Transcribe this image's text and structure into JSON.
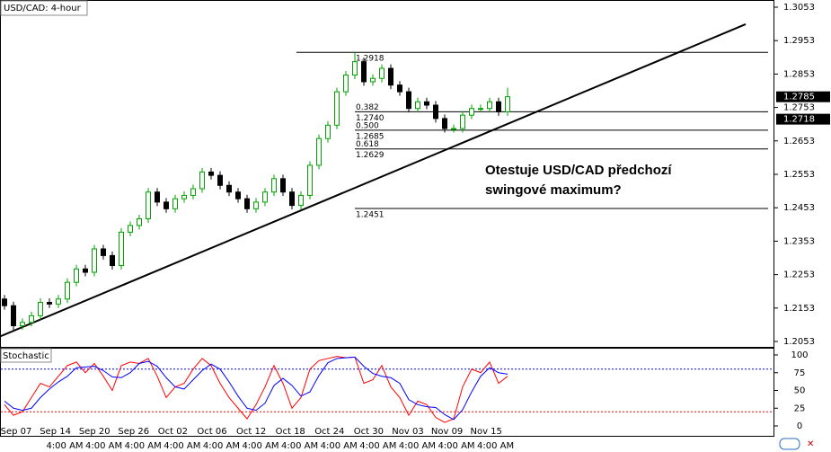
{
  "chart_data": {
    "type": "candlestick",
    "title": "USD/CAD: 4-hour",
    "annotation": [
      "Otestuje USD/CAD předchozí",
      "swingové maximum?"
    ],
    "candles": {
      "open": [
        1.218,
        1.216,
        1.21,
        1.211,
        1.213,
        1.217,
        1.2165,
        1.218,
        1.223,
        1.227,
        1.226,
        1.233,
        1.231,
        1.228,
        1.238,
        1.24,
        1.242,
        1.25,
        1.247,
        1.245,
        1.248,
        1.249,
        1.251,
        1.256,
        1.255,
        1.252,
        1.25,
        1.248,
        1.245,
        1.247,
        1.25,
        1.254,
        1.25,
        1.246,
        1.249,
        1.258,
        1.266,
        1.27,
        1.28,
        1.285,
        1.289,
        1.283,
        1.284,
        1.287,
        1.282,
        1.28,
        1.275,
        1.277,
        1.276,
        1.272,
        1.269,
        1.269,
        1.273,
        1.275,
        1.275,
        1.277,
        1.274
      ],
      "high": [
        1.2192,
        1.2172,
        1.2122,
        1.2142,
        1.2182,
        1.2182,
        1.2192,
        1.2242,
        1.2282,
        1.2282,
        1.2342,
        1.2342,
        1.2322,
        1.2392,
        1.2412,
        1.2432,
        1.2512,
        1.2512,
        1.2482,
        1.2492,
        1.2502,
        1.2522,
        1.2572,
        1.2572,
        1.2562,
        1.2532,
        1.2512,
        1.2492,
        1.2482,
        1.2512,
        1.2552,
        1.2552,
        1.2512,
        1.2502,
        1.2592,
        1.2672,
        1.2712,
        1.2812,
        1.2862,
        1.2918,
        1.2902,
        1.2852,
        1.2882,
        1.2882,
        1.2832,
        1.2812,
        1.2782,
        1.2782,
        1.2772,
        1.2732,
        1.2702,
        1.2742,
        1.2762,
        1.2762,
        1.2782,
        1.2782,
        1.2812
      ],
      "low": [
        1.2148,
        1.2088,
        1.2088,
        1.2098,
        1.2118,
        1.2153,
        1.2153,
        1.2168,
        1.2218,
        1.2248,
        1.2248,
        1.2298,
        1.2268,
        1.2268,
        1.2368,
        1.2388,
        1.2408,
        1.2458,
        1.2438,
        1.2438,
        1.2468,
        1.2478,
        1.2498,
        1.2538,
        1.2508,
        1.2488,
        1.2468,
        1.2438,
        1.2438,
        1.2458,
        1.2488,
        1.2488,
        1.2448,
        1.2448,
        1.2478,
        1.2568,
        1.2648,
        1.2688,
        1.2788,
        1.2838,
        1.2818,
        1.2818,
        1.2828,
        1.2808,
        1.2788,
        1.2738,
        1.2738,
        1.2748,
        1.2708,
        1.2678,
        1.2678,
        1.2678,
        1.2718,
        1.2738,
        1.2738,
        1.2728,
        1.2728
      ],
      "close": [
        1.216,
        1.21,
        1.211,
        1.213,
        1.217,
        1.2165,
        1.218,
        1.223,
        1.227,
        1.226,
        1.233,
        1.231,
        1.228,
        1.238,
        1.24,
        1.242,
        1.25,
        1.247,
        1.245,
        1.248,
        1.249,
        1.251,
        1.256,
        1.255,
        1.252,
        1.25,
        1.248,
        1.245,
        1.247,
        1.25,
        1.254,
        1.25,
        1.246,
        1.249,
        1.258,
        1.266,
        1.27,
        1.28,
        1.285,
        1.289,
        1.283,
        1.284,
        1.287,
        1.282,
        1.28,
        1.275,
        1.277,
        1.276,
        1.272,
        1.269,
        1.269,
        1.273,
        1.275,
        1.275,
        1.277,
        1.274,
        1.2785
      ],
      "up_color": "#00a000",
      "down_color": "#000000"
    },
    "ylim": [
      1.2053,
      1.3053
    ],
    "yticks": [
      1.2053,
      1.2153,
      1.2253,
      1.2353,
      1.2453,
      1.2553,
      1.2653,
      1.2753,
      1.2853,
      1.2953,
      1.3053
    ],
    "price_markers": [
      1.2785,
      1.2718
    ],
    "levels": [
      {
        "value": 1.2918,
        "label": "1.2918"
      },
      {
        "ratio": "0.382",
        "value": 1.274,
        "label": "1.2740"
      },
      {
        "ratio": "0.500",
        "value": 1.2685,
        "label": "1.2685"
      },
      {
        "ratio": "0.618",
        "value": 1.2629,
        "label": "1.2629"
      },
      {
        "value": 1.2451,
        "label": "1.2451"
      }
    ],
    "trendline": {
      "x": [
        -0.5,
        82.5
      ],
      "y": [
        1.2068,
        1.3002
      ]
    },
    "dates": [
      "Sep 07",
      "Sep 14",
      "Sep 20",
      "Sep 26",
      "Oct 02",
      "Oct 06",
      "Oct 12",
      "Oct 18",
      "Oct 24",
      "Oct 30",
      "Nov 03",
      "Nov 09",
      "Nov 15"
    ],
    "time_labels": [
      "4:00 AM",
      "4:00 AM",
      "4:00 AM",
      "4:00 AM",
      "4:00 AM",
      "4:00 AM",
      "4:00 AM",
      "4:00 AM",
      "4:00 AM",
      "4:00 AM",
      "4:00 AM",
      "4:00 AM"
    ],
    "stochastic": {
      "title": "Stochastic",
      "ylim": [
        0,
        100
      ],
      "yticks": [
        0,
        25,
        50,
        75,
        100
      ],
      "levels": [
        {
          "value": 20,
          "color": "#ff0000"
        },
        {
          "value": 80,
          "color": "#0000ff"
        }
      ],
      "series": [
        {
          "color": "#ff0000",
          "values": [
            30,
            15,
            20,
            40,
            60,
            55,
            70,
            85,
            90,
            75,
            88,
            70,
            50,
            85,
            90,
            88,
            95,
            70,
            40,
            55,
            60,
            80,
            95,
            85,
            60,
            40,
            25,
            10,
            30,
            55,
            85,
            60,
            25,
            40,
            80,
            92,
            95,
            98,
            96,
            97,
            60,
            65,
            85,
            55,
            40,
            15,
            35,
            30,
            12,
            5,
            10,
            55,
            80,
            75,
            90,
            60,
            70
          ]
        },
        {
          "color": "#0000ff",
          "values": [
            35,
            25,
            22,
            25,
            40,
            52,
            62,
            70,
            82,
            83,
            84,
            78,
            69,
            68,
            75,
            88,
            91,
            84,
            68,
            55,
            52,
            65,
            78,
            87,
            80,
            62,
            42,
            25,
            22,
            32,
            57,
            67,
            57,
            42,
            48,
            71,
            89,
            95,
            96,
            97,
            84,
            74,
            70,
            68,
            60,
            37,
            30,
            27,
            26,
            16,
            9,
            23,
            48,
            70,
            82,
            75,
            73
          ]
        }
      ]
    }
  }
}
